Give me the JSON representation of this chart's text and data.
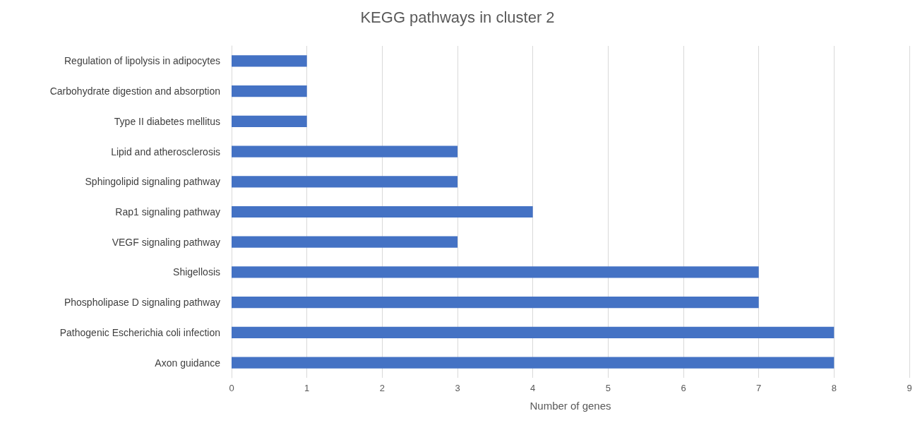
{
  "chart_data": {
    "type": "bar",
    "orientation": "horizontal",
    "title": "KEGG pathways in cluster 2",
    "xlabel": "Number of genes",
    "categories": [
      "Regulation of lipolysis in adipocytes",
      "Carbohydrate digestion and absorption",
      "Type II diabetes mellitus",
      "Lipid and atherosclerosis",
      "Sphingolipid signaling pathway",
      "Rap1 signaling pathway",
      "VEGF signaling pathway",
      "Shigellosis",
      "Phospholipase D signaling pathway",
      "Pathogenic Escherichia coli infection",
      "Axon guidance"
    ],
    "values": [
      1,
      1,
      1,
      3,
      3,
      4,
      3,
      7,
      7,
      8,
      8
    ],
    "color": "#4472c4",
    "xlim": [
      0,
      9
    ],
    "xticks": [
      0,
      1,
      2,
      3,
      4,
      5,
      6,
      7,
      8,
      9
    ],
    "grid": "x"
  }
}
